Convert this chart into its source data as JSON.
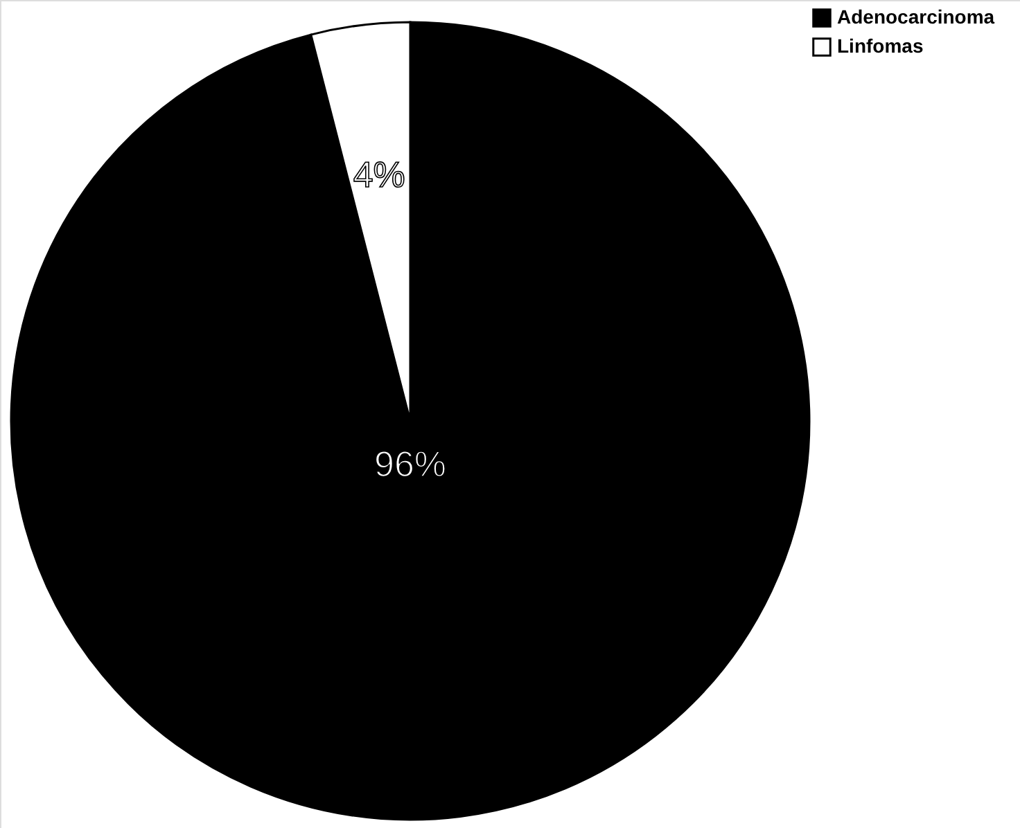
{
  "chart_data": {
    "type": "pie",
    "categories": [
      "Adenocarcinoma",
      "Linfomas"
    ],
    "values": [
      96,
      4
    ],
    "colors": [
      "#000000",
      "#ffffff"
    ],
    "value_labels": [
      "96%",
      "4%"
    ],
    "legend": "top right"
  }
}
